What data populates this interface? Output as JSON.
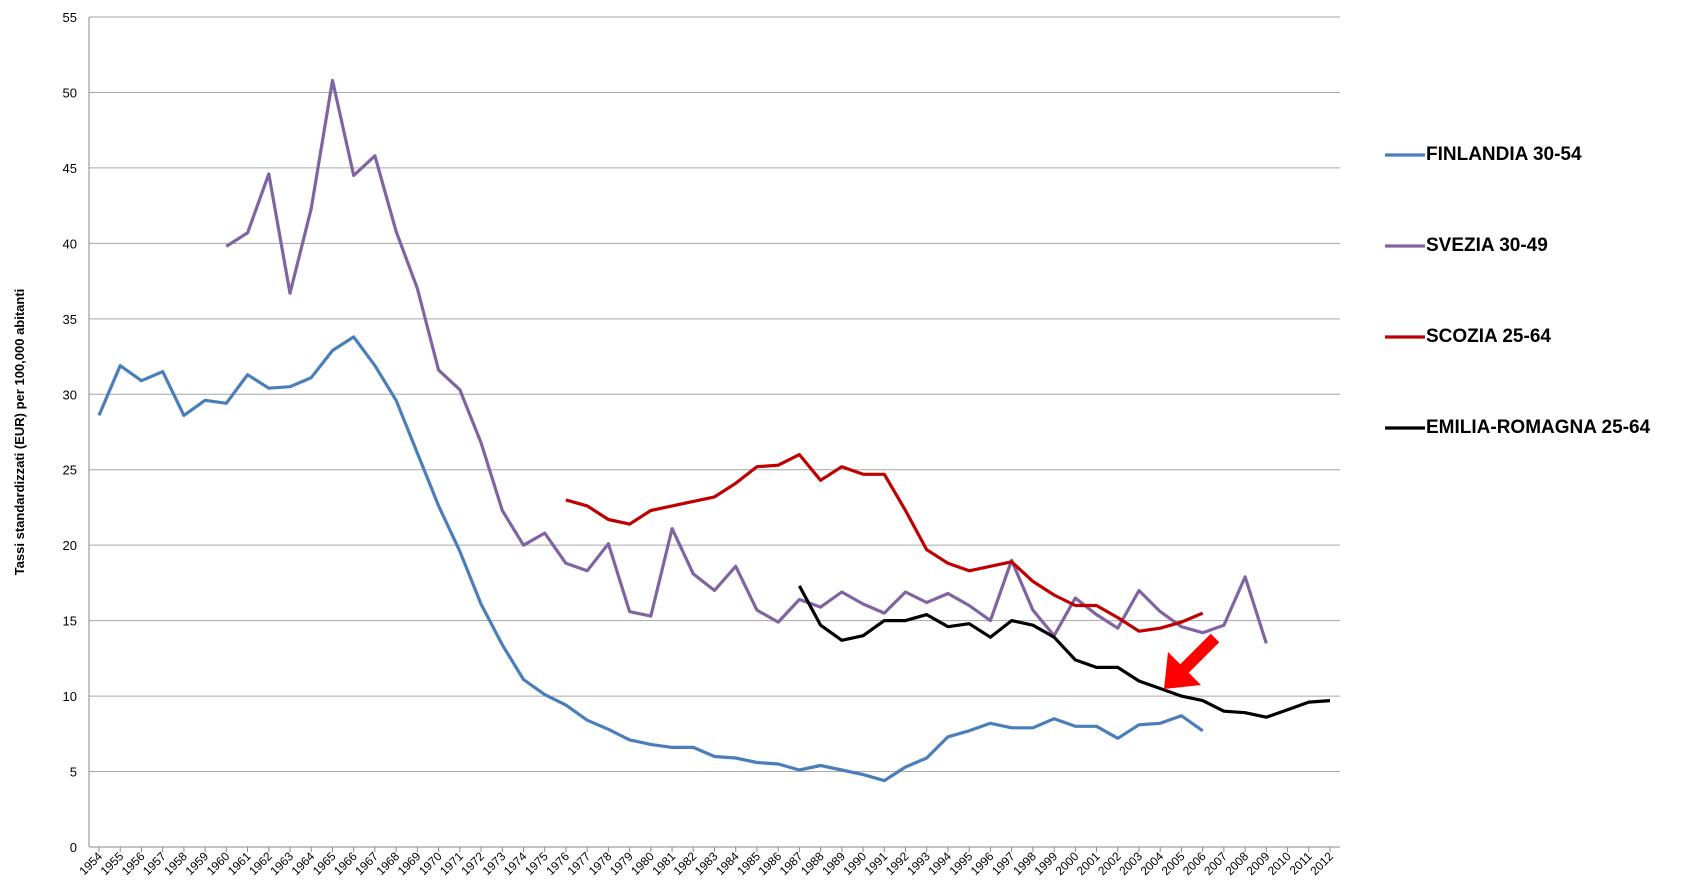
{
  "chart_data": {
    "type": "line",
    "y_label": "Tassi standardizzati  (EUR) per 100,000 abitanti",
    "categories": [
      1954,
      1955,
      1956,
      1957,
      1958,
      1959,
      1960,
      1961,
      1962,
      1963,
      1964,
      1965,
      1966,
      1967,
      1968,
      1969,
      1970,
      1971,
      1972,
      1973,
      1974,
      1975,
      1976,
      1977,
      1978,
      1979,
      1980,
      1981,
      1982,
      1983,
      1984,
      1985,
      1986,
      1987,
      1988,
      1989,
      1990,
      1991,
      1992,
      1993,
      1994,
      1995,
      1996,
      1997,
      1998,
      1999,
      2000,
      2001,
      2002,
      2003,
      2004,
      2005,
      2006,
      2007,
      2008,
      2009,
      2010,
      2011,
      2012
    ],
    "ylim": [
      0,
      55
    ],
    "yticks": [
      0,
      5,
      10,
      15,
      20,
      25,
      30,
      35,
      40,
      45,
      50,
      55
    ],
    "grid": true,
    "series": [
      {
        "name": "FINLANDIA 30-54",
        "color": "#4a7ebb",
        "values": [
          28.6,
          31.9,
          30.9,
          31.5,
          28.6,
          29.6,
          29.4,
          31.3,
          30.4,
          30.5,
          31.1,
          32.9,
          33.8,
          31.9,
          29.6,
          26.1,
          22.6,
          19.6,
          16.1,
          13.4,
          11.1,
          10.1,
          9.4,
          8.4,
          7.8,
          7.1,
          6.8,
          6.6,
          6.6,
          6.0,
          5.9,
          5.6,
          5.5,
          5.1,
          5.4,
          5.1,
          4.8,
          4.4,
          5.3,
          5.9,
          7.3,
          7.7,
          8.2,
          7.9,
          7.9,
          8.5,
          8.0,
          8.0,
          7.2,
          8.1,
          8.2,
          8.7,
          7.7,
          null,
          null,
          null,
          null,
          null,
          null
        ]
      },
      {
        "name": "SVEZIA 30-49",
        "color": "#8064a2",
        "values": [
          null,
          null,
          null,
          null,
          null,
          null,
          39.8,
          40.7,
          44.6,
          36.7,
          42.3,
          50.8,
          44.5,
          45.8,
          40.8,
          37.0,
          31.6,
          30.3,
          26.8,
          22.3,
          20.0,
          20.8,
          18.8,
          18.3,
          20.1,
          15.6,
          15.3,
          21.1,
          18.1,
          17.0,
          18.6,
          15.7,
          14.9,
          16.4,
          15.9,
          16.9,
          16.1,
          15.5,
          16.9,
          16.2,
          16.8,
          16.0,
          15.0,
          19.0,
          15.7,
          14.0,
          16.5,
          15.4,
          14.5,
          17.0,
          15.6,
          14.6,
          14.2,
          14.7,
          17.9,
          13.5,
          null,
          null,
          null
        ]
      },
      {
        "name": "SCOZIA 25-64",
        "color": "#c00000",
        "values": [
          null,
          null,
          null,
          null,
          null,
          null,
          null,
          null,
          null,
          null,
          null,
          null,
          null,
          null,
          null,
          null,
          null,
          null,
          null,
          null,
          null,
          null,
          23.0,
          22.6,
          21.7,
          21.4,
          22.3,
          22.6,
          22.9,
          23.2,
          24.1,
          25.2,
          25.3,
          26.0,
          24.3,
          25.2,
          24.7,
          24.7,
          22.3,
          19.7,
          18.8,
          18.3,
          18.6,
          18.9,
          17.6,
          16.7,
          16.0,
          16.0,
          15.2,
          14.3,
          14.5,
          14.9,
          15.5,
          null,
          null,
          null,
          null,
          null,
          null
        ]
      },
      {
        "name": "EMILIA-ROMAGNA 25-64",
        "color": "#000000",
        "values": [
          null,
          null,
          null,
          null,
          null,
          null,
          null,
          null,
          null,
          null,
          null,
          null,
          null,
          null,
          null,
          null,
          null,
          null,
          null,
          null,
          null,
          null,
          null,
          null,
          null,
          null,
          null,
          null,
          null,
          null,
          null,
          null,
          null,
          17.3,
          14.7,
          13.7,
          14.0,
          15.0,
          15.0,
          15.4,
          14.6,
          14.8,
          13.9,
          15.0,
          14.7,
          13.9,
          12.4,
          11.9,
          11.9,
          11.0,
          10.5,
          10.0,
          9.7,
          9.0,
          8.9,
          8.6,
          9.1,
          9.6,
          9.7
        ]
      }
    ]
  }
}
